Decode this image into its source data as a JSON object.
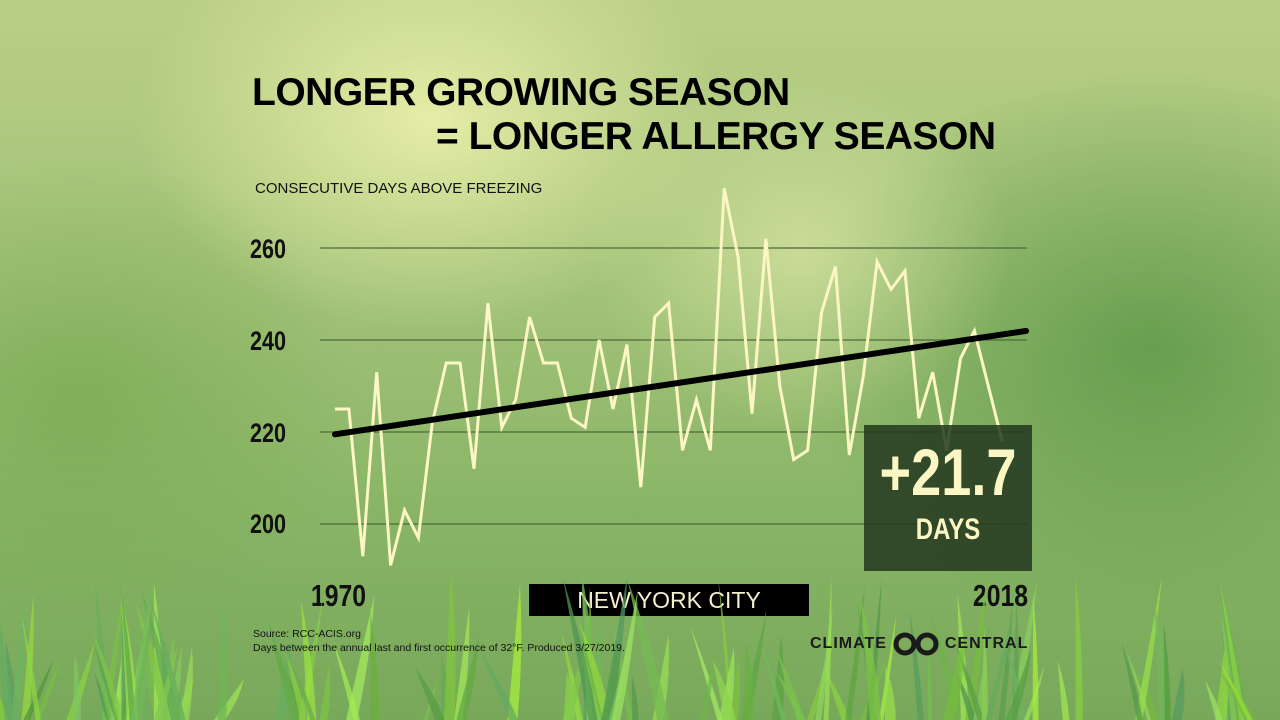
{
  "title_line1": "LONGER GROWING SEASON",
  "title_line2": "= LONGER ALLERGY SEASON",
  "location": "NEW YORK CITY",
  "callout": {
    "value": "+21.7",
    "unit": "DAYS"
  },
  "footer": {
    "source": "Source: RCC-ACIS.org",
    "note": "Days between the annual last and first occurrence of 32°F. Produced 3/27/2019."
  },
  "logo": {
    "left": "CLIMATE",
    "right": "CENTRAL"
  },
  "colors": {
    "series": "#fbf6c4",
    "trend": "#000000",
    "grid": "#4d6b35",
    "callout_bg": "#23371e"
  },
  "chart_data": {
    "type": "line",
    "title": "LONGER GROWING SEASON = LONGER ALLERGY SEASON",
    "ylabel": "CONSECUTIVE DAYS ABOVE FREEZING",
    "xlabel": "",
    "x_tick_labels": [
      "1970",
      "2018"
    ],
    "y_ticks": [
      200,
      220,
      240,
      260
    ],
    "y_tick_labels": [
      "200",
      "220",
      "240",
      "260"
    ],
    "ylim": [
      190,
      275
    ],
    "xlim": [
      1970,
      2018
    ],
    "grid": "horizontal",
    "x": [
      1970,
      1971,
      1972,
      1973,
      1974,
      1975,
      1976,
      1977,
      1978,
      1979,
      1980,
      1981,
      1982,
      1983,
      1984,
      1985,
      1986,
      1987,
      1988,
      1989,
      1990,
      1991,
      1992,
      1993,
      1994,
      1995,
      1996,
      1997,
      1998,
      1999,
      2000,
      2001,
      2002,
      2003,
      2004,
      2005,
      2006,
      2007,
      2008,
      2009,
      2010,
      2011,
      2012,
      2013,
      2014,
      2015,
      2016,
      2017,
      2018
    ],
    "series": [
      {
        "values": [
          225,
          225,
          193,
          233,
          191,
          203,
          197,
          222,
          235,
          235,
          212,
          248,
          221,
          227,
          245,
          235,
          235,
          223,
          221,
          240,
          225,
          239,
          208,
          245,
          248,
          216,
          227,
          216,
          273,
          258,
          224,
          262,
          230,
          214,
          216,
          246,
          256,
          215,
          232,
          257,
          251,
          255,
          223,
          233,
          216,
          236,
          242,
          230,
          218
        ]
      },
      {
        "type": "trend",
        "x": [
          1970,
          2018
        ],
        "values": [
          219.5,
          241.2
        ]
      }
    ]
  }
}
